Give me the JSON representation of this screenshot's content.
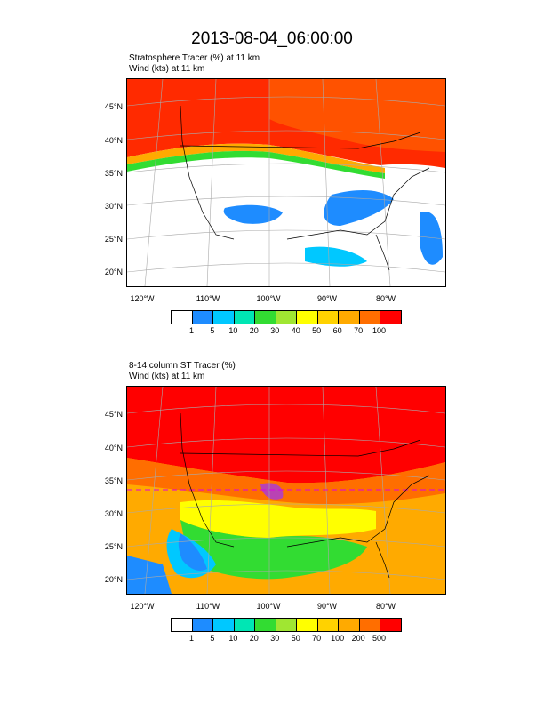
{
  "title": "2013-08-04_06:00:00",
  "panels": [
    {
      "subtitle_line1": "Stratosphere Tracer   (%)     at   11 km",
      "subtitle_line2": "Wind   (kts)     at   11 km",
      "y_ticks": [
        "45°N",
        "40°N",
        "35°N",
        "30°N",
        "25°N",
        "20°N"
      ],
      "x_ticks": [
        "120°W",
        "110°W",
        "100°W",
        "90°W",
        "80°W"
      ],
      "colorbar_labels": [
        "1",
        "5",
        "10",
        "20",
        "30",
        "40",
        "50",
        "60",
        "70",
        "100"
      ],
      "colorbar_colors": [
        "#ffffff",
        "#1e8cff",
        "#00c8ff",
        "#00e6b4",
        "#32dc32",
        "#a0e632",
        "#ffff00",
        "#ffd200",
        "#ffaa00",
        "#ff6e00",
        "#ff0000"
      ]
    },
    {
      "subtitle_line1": "8-14 column ST Tracer   (%)",
      "subtitle_line2": "Wind   (kts)     at   11 km",
      "y_ticks": [
        "45°N",
        "40°N",
        "35°N",
        "30°N",
        "25°N",
        "20°N"
      ],
      "x_ticks": [
        "120°W",
        "110°W",
        "100°W",
        "90°W",
        "80°W"
      ],
      "colorbar_labels": [
        "1",
        "5",
        "10",
        "20",
        "30",
        "50",
        "70",
        "100",
        "200",
        "500"
      ],
      "colorbar_colors": [
        "#ffffff",
        "#1e8cff",
        "#00c8ff",
        "#00e6b4",
        "#32dc32",
        "#a0e632",
        "#ffff00",
        "#ffd200",
        "#ffaa00",
        "#ff6e00",
        "#ff0000"
      ]
    }
  ]
}
